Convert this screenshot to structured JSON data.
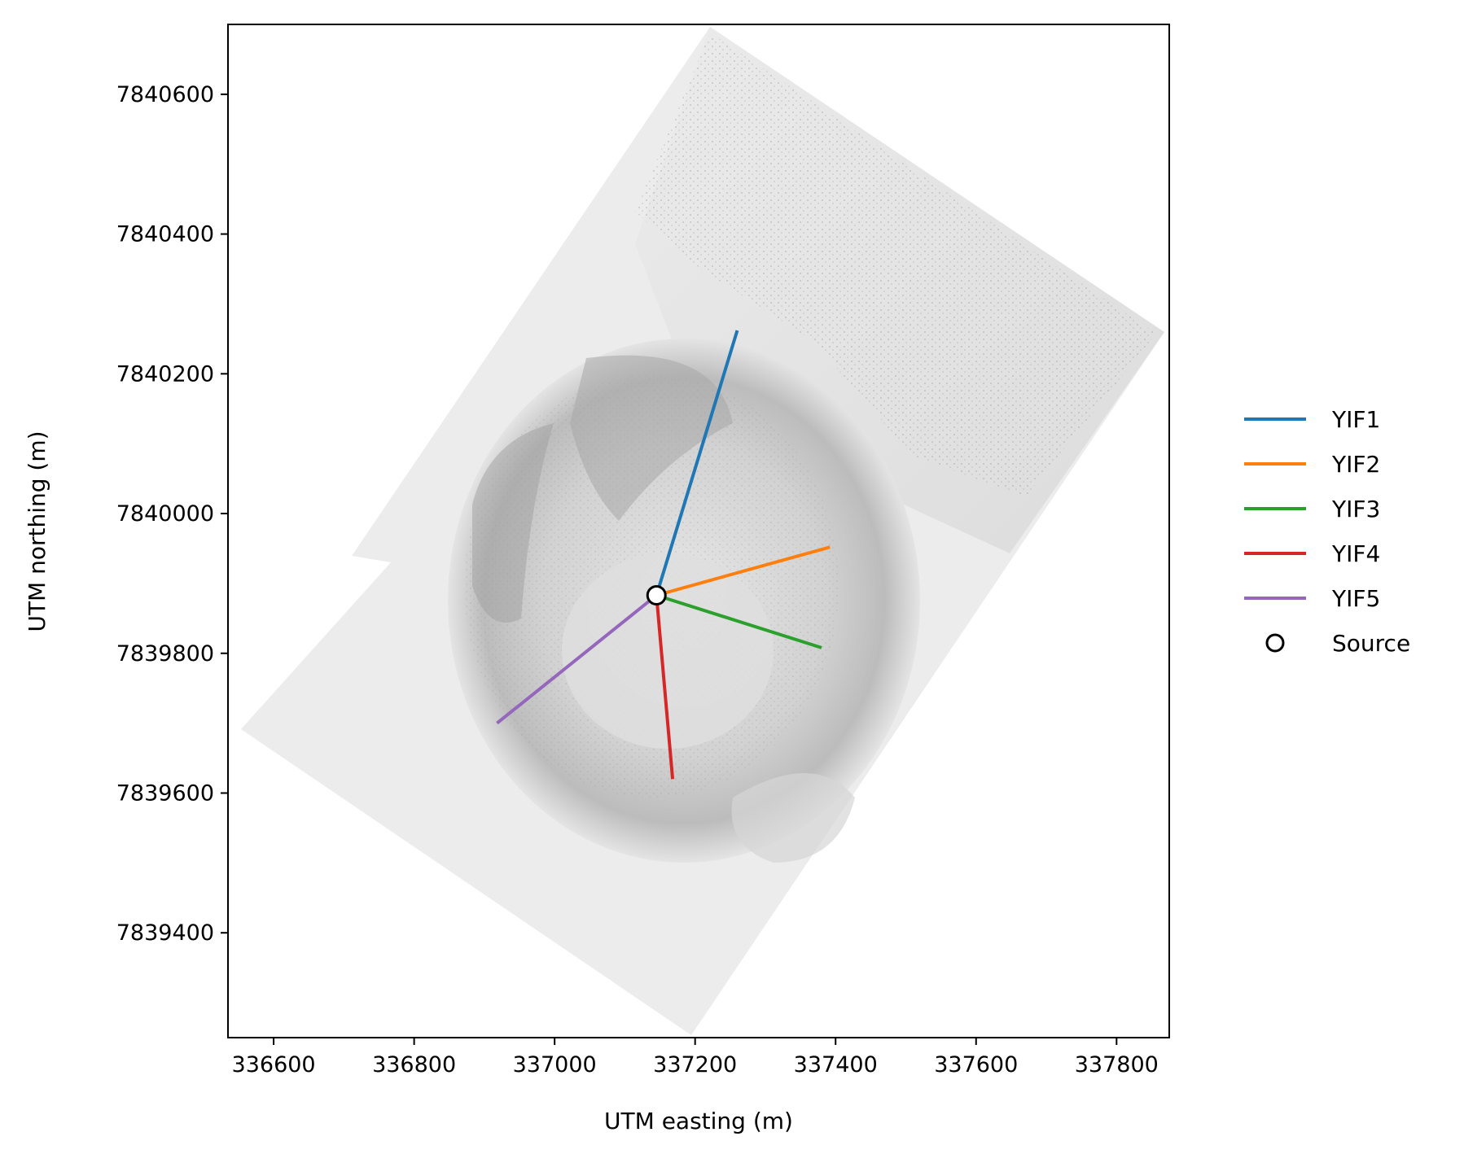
{
  "chart_data": {
    "type": "line",
    "title": "",
    "xlabel": "UTM easting (m)",
    "ylabel": "UTM northing (m)",
    "xlim": [
      336535,
      337875
    ],
    "ylim": [
      7839250,
      7840700
    ],
    "xticks": [
      336600,
      336800,
      337000,
      337200,
      337400,
      337600,
      337800
    ],
    "yticks": [
      7839400,
      7839600,
      7839800,
      7840000,
      7840200,
      7840400,
      7840600
    ],
    "grid": false,
    "legend_position": "right",
    "background": "shaded-relief elevation map (grayscale hillshade)",
    "source": {
      "name": "Source",
      "x": 337145,
      "y": 7839883
    },
    "series": [
      {
        "name": "YIF1",
        "color": "#1f77b4",
        "points": [
          [
            337145,
            7839883
          ],
          [
            337260,
            7840262
          ]
        ]
      },
      {
        "name": "YIF2",
        "color": "#ff7f0e",
        "points": [
          [
            337145,
            7839883
          ],
          [
            337392,
            7839952
          ]
        ]
      },
      {
        "name": "YIF3",
        "color": "#2ca02c",
        "points": [
          [
            337145,
            7839883
          ],
          [
            337380,
            7839808
          ]
        ]
      },
      {
        "name": "YIF4",
        "color": "#d62728",
        "points": [
          [
            337145,
            7839883
          ],
          [
            337168,
            7839620
          ]
        ]
      },
      {
        "name": "YIF5",
        "color": "#9467bd",
        "points": [
          [
            337145,
            7839883
          ],
          [
            336918,
            7839700
          ]
        ]
      }
    ]
  }
}
